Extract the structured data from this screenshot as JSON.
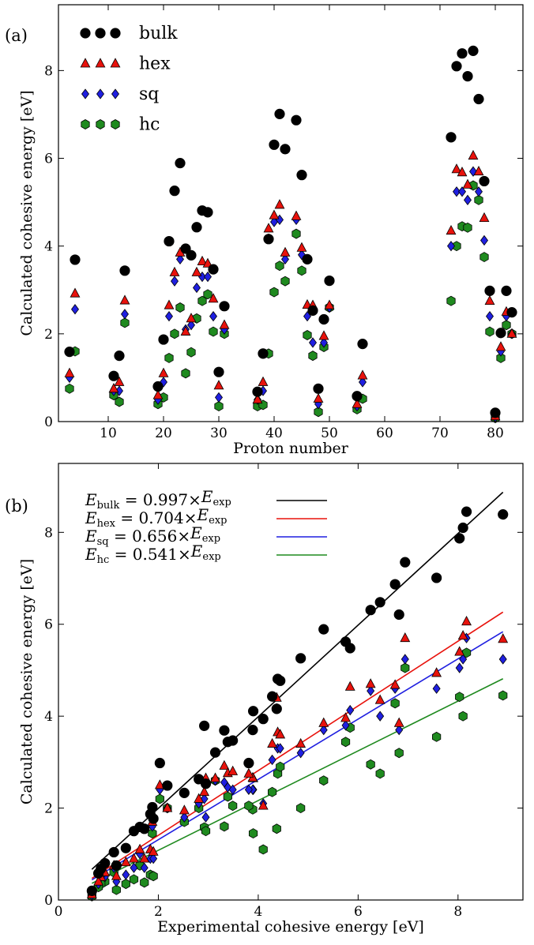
{
  "chart_data": [
    {
      "type": "scatter",
      "panel_label": "(a)",
      "title": "",
      "xlabel": "Proton number",
      "ylabel": "Calculated cohesive energy [eV]",
      "xlim": [
        1,
        85
      ],
      "ylim": [
        0,
        9.5
      ],
      "xticks": [
        10,
        20,
        30,
        40,
        50,
        60,
        70,
        80
      ],
      "yticks": [
        0,
        2,
        4,
        6,
        8
      ],
      "grid": false,
      "legend_position": "top-left",
      "series": [
        {
          "name": "bulk",
          "marker": "circle",
          "color": "#000000",
          "points": [
            [
              3,
              1.59
            ],
            [
              4,
              3.69
            ],
            [
              11,
              1.04
            ],
            [
              12,
              1.5
            ],
            [
              13,
              3.44
            ],
            [
              19,
              0.8
            ],
            [
              20,
              1.87
            ],
            [
              21,
              4.11
            ],
            [
              22,
              5.26
            ],
            [
              23,
              5.89
            ],
            [
              24,
              3.94
            ],
            [
              25,
              3.79
            ],
            [
              26,
              4.43
            ],
            [
              27,
              4.81
            ],
            [
              28,
              4.77
            ],
            [
              29,
              3.47
            ],
            [
              30,
              1.13
            ],
            [
              31,
              2.63
            ],
            [
              37,
              0.68
            ],
            [
              38,
              1.55
            ],
            [
              39,
              4.16
            ],
            [
              40,
              6.31
            ],
            [
              41,
              7.01
            ],
            [
              42,
              6.21
            ],
            [
              44,
              6.87
            ],
            [
              45,
              5.62
            ],
            [
              46,
              3.7
            ],
            [
              47,
              2.53
            ],
            [
              48,
              0.75
            ],
            [
              49,
              2.33
            ],
            [
              50,
              3.21
            ],
            [
              55,
              0.58
            ],
            [
              56,
              1.77
            ],
            [
              72,
              6.48
            ],
            [
              73,
              8.1
            ],
            [
              74,
              8.39
            ],
            [
              75,
              7.87
            ],
            [
              76,
              8.45
            ],
            [
              77,
              7.35
            ],
            [
              78,
              5.48
            ],
            [
              79,
              2.98
            ],
            [
              80,
              0.2
            ],
            [
              81,
              2.02
            ],
            [
              82,
              2.98
            ],
            [
              83,
              2.49
            ]
          ]
        },
        {
          "name": "hex",
          "marker": "triangle",
          "color": "#e8120c",
          "points": [
            [
              3,
              1.1
            ],
            [
              4,
              2.92
            ],
            [
              11,
              0.75
            ],
            [
              12,
              0.9
            ],
            [
              13,
              2.76
            ],
            [
              19,
              0.6
            ],
            [
              20,
              1.1
            ],
            [
              21,
              2.65
            ],
            [
              22,
              3.4
            ],
            [
              23,
              3.85
            ],
            [
              24,
              2.05
            ],
            [
              25,
              2.35
            ],
            [
              26,
              3.4
            ],
            [
              27,
              3.65
            ],
            [
              28,
              3.6
            ],
            [
              29,
              2.8
            ],
            [
              30,
              0.82
            ],
            [
              31,
              2.2
            ],
            [
              37,
              0.5
            ],
            [
              38,
              0.9
            ],
            [
              39,
              4.4
            ],
            [
              40,
              4.7
            ],
            [
              41,
              4.94
            ],
            [
              42,
              3.85
            ],
            [
              44,
              4.68
            ],
            [
              45,
              3.96
            ],
            [
              46,
              2.66
            ],
            [
              47,
              2.65
            ],
            [
              48,
              0.52
            ],
            [
              49,
              1.95
            ],
            [
              50,
              2.65
            ],
            [
              55,
              0.4
            ],
            [
              56,
              1.05
            ],
            [
              72,
              4.35
            ],
            [
              73,
              5.75
            ],
            [
              74,
              5.68
            ],
            [
              75,
              5.4
            ],
            [
              76,
              6.06
            ],
            [
              77,
              5.7
            ],
            [
              78,
              4.64
            ],
            [
              79,
              2.75
            ],
            [
              80,
              0.12
            ],
            [
              81,
              1.7
            ],
            [
              82,
              2.5
            ],
            [
              83,
              2.0
            ]
          ]
        },
        {
          "name": "sq",
          "marker": "diamond",
          "color": "#1f1fe0",
          "points": [
            [
              3,
              1.0
            ],
            [
              4,
              2.56
            ],
            [
              11,
              0.7
            ],
            [
              12,
              0.7
            ],
            [
              13,
              2.45
            ],
            [
              19,
              0.5
            ],
            [
              20,
              0.9
            ],
            [
              21,
              2.4
            ],
            [
              22,
              3.2
            ],
            [
              23,
              3.7
            ],
            [
              24,
              2.1
            ],
            [
              25,
              2.2
            ],
            [
              26,
              3.05
            ],
            [
              27,
              3.3
            ],
            [
              28,
              3.3
            ],
            [
              29,
              2.4
            ],
            [
              30,
              0.55
            ],
            [
              31,
              2.1
            ],
            [
              37,
              0.5
            ],
            [
              38,
              0.7
            ],
            [
              39,
              4.17
            ],
            [
              40,
              4.55
            ],
            [
              41,
              4.6
            ],
            [
              42,
              3.7
            ],
            [
              44,
              4.6
            ],
            [
              45,
              3.8
            ],
            [
              46,
              2.4
            ],
            [
              47,
              1.8
            ],
            [
              48,
              0.4
            ],
            [
              49,
              1.8
            ],
            [
              50,
              2.6
            ],
            [
              55,
              0.35
            ],
            [
              56,
              0.9
            ],
            [
              72,
              4.0
            ],
            [
              73,
              5.24
            ],
            [
              74,
              5.24
            ],
            [
              75,
              5.05
            ],
            [
              76,
              5.7
            ],
            [
              77,
              5.24
            ],
            [
              78,
              4.13
            ],
            [
              79,
              2.4
            ],
            [
              80,
              0.1
            ],
            [
              81,
              1.6
            ],
            [
              82,
              2.4
            ],
            [
              83,
              2.0
            ]
          ]
        },
        {
          "name": "hc",
          "marker": "hexagon",
          "color": "#1f8a1f",
          "points": [
            [
              3,
              0.75
            ],
            [
              4,
              1.6
            ],
            [
              11,
              0.6
            ],
            [
              12,
              0.45
            ],
            [
              13,
              2.25
            ],
            [
              19,
              0.4
            ],
            [
              20,
              0.55
            ],
            [
              21,
              1.45
            ],
            [
              22,
              2.0
            ],
            [
              23,
              2.6
            ],
            [
              24,
              1.1
            ],
            [
              25,
              1.58
            ],
            [
              26,
              2.35
            ],
            [
              27,
              2.75
            ],
            [
              28,
              2.9
            ],
            [
              29,
              2.05
            ],
            [
              30,
              0.35
            ],
            [
              31,
              2.0
            ],
            [
              37,
              0.35
            ],
            [
              38,
              0.38
            ],
            [
              39,
              1.55
            ],
            [
              40,
              2.95
            ],
            [
              41,
              3.55
            ],
            [
              42,
              3.2
            ],
            [
              44,
              4.28
            ],
            [
              45,
              3.44
            ],
            [
              46,
              1.97
            ],
            [
              47,
              1.5
            ],
            [
              48,
              0.22
            ],
            [
              49,
              1.7
            ],
            [
              50,
              2.6
            ],
            [
              55,
              0.28
            ],
            [
              56,
              0.52
            ],
            [
              72,
              2.75
            ],
            [
              73,
              4.0
            ],
            [
              74,
              4.45
            ],
            [
              75,
              4.42
            ],
            [
              76,
              5.38
            ],
            [
              77,
              5.05
            ],
            [
              78,
              3.75
            ],
            [
              79,
              2.05
            ],
            [
              80,
              0.08
            ],
            [
              81,
              1.45
            ],
            [
              82,
              2.2
            ],
            [
              83,
              2.0
            ]
          ]
        }
      ]
    },
    {
      "type": "scatter",
      "panel_label": "(b)",
      "title": "",
      "xlabel": "Experimental cohesive energy [eV]",
      "ylabel": "Calculated cohesive energy [eV]",
      "xlim": [
        0,
        9.3
      ],
      "ylim": [
        0,
        9.5
      ],
      "xticks": [
        0,
        2,
        4,
        6,
        8
      ],
      "yticks": [
        0,
        2,
        4,
        6,
        8
      ],
      "grid": false,
      "legend_position": "top-left",
      "fit_lines": [
        {
          "series": "bulk",
          "sub": "bulk",
          "prefix": "E",
          "rest": " = 0.997×",
          "suffix_e": "E",
          "suffix_sub": "exp",
          "slope": 0.997,
          "x_range": [
            0.67,
            8.9
          ],
          "color": "#000000"
        },
        {
          "series": "hex",
          "sub": "hex",
          "prefix": "E",
          "rest": " = 0.704×",
          "suffix_e": "E",
          "suffix_sub": "exp",
          "slope": 0.704,
          "x_range": [
            0.67,
            8.9
          ],
          "color": "#e8120c"
        },
        {
          "series": "sq",
          "sub": "sq",
          "prefix": "E",
          "rest": " = 0.656×",
          "suffix_e": "E",
          "suffix_sub": "exp",
          "slope": 0.656,
          "x_range": [
            0.67,
            8.9
          ],
          "color": "#1f1fe0"
        },
        {
          "series": "hc",
          "sub": "hc",
          "prefix": "E",
          "rest": " = 0.541×",
          "suffix_e": "E",
          "suffix_sub": "exp",
          "slope": 0.541,
          "x_range": [
            0.67,
            8.9
          ],
          "color": "#1f8a1f"
        }
      ],
      "experimental_x": [
        1.63,
        3.32,
        1.11,
        1.51,
        3.39,
        0.93,
        1.84,
        3.9,
        4.85,
        5.31,
        4.1,
        2.92,
        4.28,
        4.39,
        4.44,
        3.49,
        1.35,
        2.81,
        0.85,
        1.72,
        4.37,
        6.25,
        7.57,
        6.82,
        6.74,
        5.75,
        3.89,
        2.95,
        1.16,
        2.52,
        3.14,
        0.8,
        1.9,
        6.44,
        8.1,
        8.9,
        8.03,
        8.17,
        6.94,
        5.84,
        3.81,
        0.67,
        1.88,
        2.03,
        2.18
      ]
    }
  ]
}
